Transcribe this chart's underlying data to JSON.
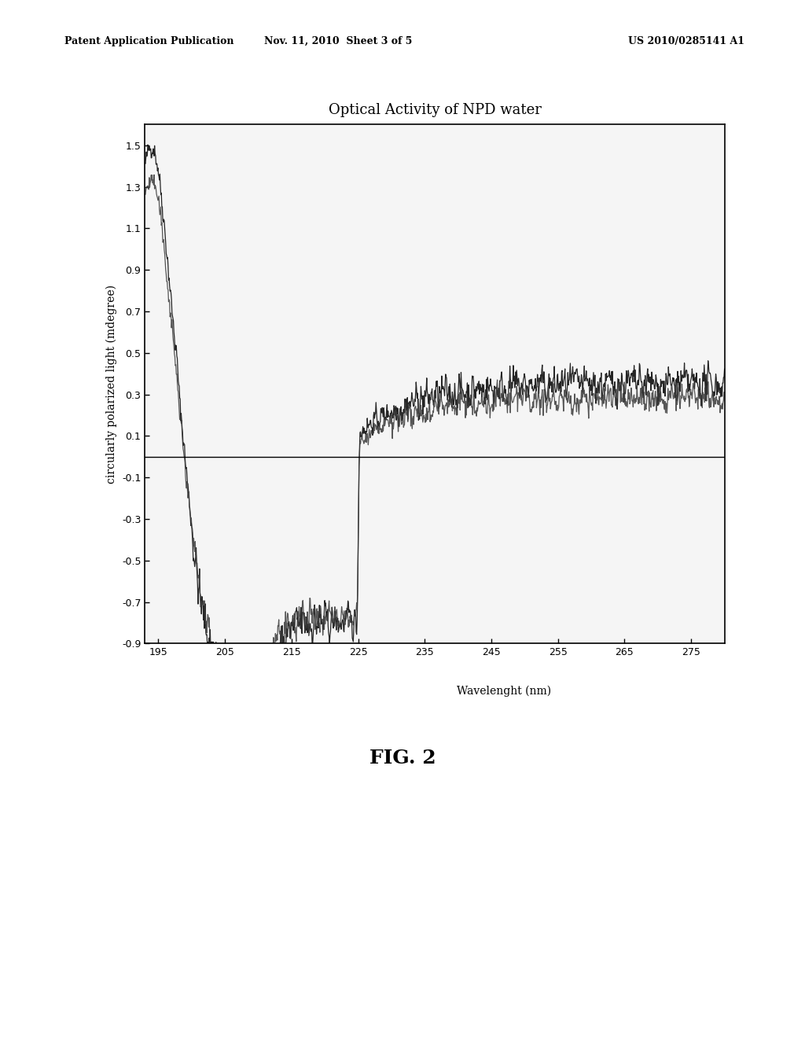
{
  "title": "Optical Activity of NPD water",
  "xlabel": "Wavelenght (nm)",
  "ylabel": "circularly polarized light (mdegree)",
  "xlim": [
    193,
    280
  ],
  "ylim": [
    -0.9,
    1.6
  ],
  "yticks": [
    -0.9,
    -0.7,
    -0.5,
    -0.3,
    -0.1,
    0.1,
    0.3,
    0.5,
    0.7,
    0.9,
    1.1,
    1.3,
    1.5
  ],
  "xticks": [
    195,
    205,
    215,
    225,
    235,
    245,
    255,
    265,
    275
  ],
  "background_color": "#ffffff",
  "header_left": "Patent Application Publication",
  "header_center": "Nov. 11, 2010  Sheet 3 of 5",
  "header_right": "US 2010/0285141 A1",
  "fig_label": "FIG. 2"
}
